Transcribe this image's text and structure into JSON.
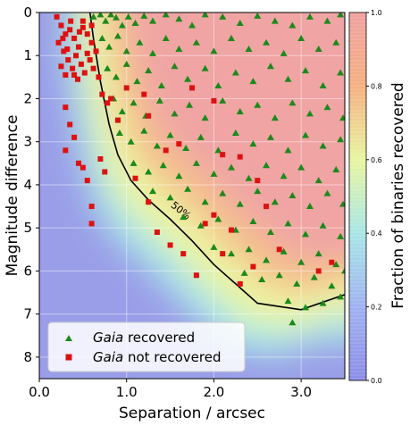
{
  "chart_data": {
    "type": "scatter",
    "xlabel": "Separation / arcsec",
    "ylabel": "Magnitude difference",
    "xlim": [
      0.0,
      3.5
    ],
    "ylim": [
      8.5,
      0.0
    ],
    "y_inverted": true,
    "grid": true,
    "legend_placement": "bottom-left",
    "xticks": [
      {
        "value": 0.0,
        "label": "0.0"
      },
      {
        "value": 1.0,
        "label": "1.0"
      },
      {
        "value": 2.0,
        "label": "2.0"
      },
      {
        "value": 3.0,
        "label": "3.0"
      }
    ],
    "yticks": [
      {
        "value": 0,
        "label": "0"
      },
      {
        "value": 1,
        "label": "1"
      },
      {
        "value": 2,
        "label": "2"
      },
      {
        "value": 3,
        "label": "3"
      },
      {
        "value": 4,
        "label": "4"
      },
      {
        "value": 5,
        "label": "5"
      },
      {
        "value": 6,
        "label": "6"
      },
      {
        "value": 7,
        "label": "7"
      },
      {
        "value": 8,
        "label": "8"
      }
    ],
    "background_map": {
      "quantity": "Fraction of binaries recovered",
      "range": [
        0.0,
        1.0
      ]
    },
    "colorbar": {
      "label": "Fraction of binaries recovered",
      "ticks": [
        {
          "value": 0.0,
          "label": "0.0"
        },
        {
          "value": 0.2,
          "label": "0.2"
        },
        {
          "value": 0.4,
          "label": "0.4"
        },
        {
          "value": 0.6,
          "label": "0.6"
        },
        {
          "value": 0.8,
          "label": "0.8"
        },
        {
          "value": 1.0,
          "label": "1.0"
        }
      ],
      "colors": [
        "#8c8ce6",
        "#9fb2f0",
        "#a8e6e6",
        "#e8f5a0",
        "#f5b080",
        "#f0a0a0"
      ]
    },
    "contour_50": {
      "label": "50%",
      "x": [
        0.58,
        0.62,
        0.66,
        0.7,
        0.75,
        0.8,
        0.9,
        1.05,
        1.25,
        1.5,
        1.75,
        2.0,
        2.25,
        2.5,
        3.0,
        3.5
      ],
      "y": [
        0.0,
        0.6,
        1.1,
        1.6,
        2.1,
        2.6,
        3.3,
        3.9,
        4.35,
        4.8,
        5.3,
        5.85,
        6.3,
        6.75,
        6.9,
        6.55
      ]
    },
    "series": [
      {
        "name": "Gaia recovered",
        "italic_part": "Gaia",
        "marker": "triangle",
        "color": "#1a8a1a",
        "points": [
          [
            0.62,
            0.1
          ],
          [
            0.7,
            0.05
          ],
          [
            0.76,
            0.2
          ],
          [
            0.82,
            0.05
          ],
          [
            0.88,
            0.12
          ],
          [
            0.95,
            0.3
          ],
          [
            1.02,
            0.1
          ],
          [
            1.1,
            0.25
          ],
          [
            1.2,
            0.08
          ],
          [
            1.3,
            0.2
          ],
          [
            1.45,
            0.05
          ],
          [
            1.6,
            0.15
          ],
          [
            1.75,
            0.3
          ],
          [
            1.9,
            0.05
          ],
          [
            2.1,
            0.1
          ],
          [
            2.3,
            0.25
          ],
          [
            2.5,
            0.08
          ],
          [
            2.7,
            0.2
          ],
          [
            2.9,
            0.3
          ],
          [
            3.1,
            0.1
          ],
          [
            3.3,
            0.2
          ],
          [
            3.45,
            0.05
          ],
          [
            0.72,
            0.6
          ],
          [
            0.8,
            0.8
          ],
          [
            0.9,
            0.55
          ],
          [
            1.0,
            0.9
          ],
          [
            1.15,
            0.7
          ],
          [
            1.3,
            0.95
          ],
          [
            1.45,
            0.6
          ],
          [
            1.6,
            0.85
          ],
          [
            1.8,
            0.7
          ],
          [
            2.0,
            0.9
          ],
          [
            2.2,
            0.6
          ],
          [
            2.4,
            0.85
          ],
          [
            2.6,
            0.7
          ],
          [
            2.8,
            0.95
          ],
          [
            3.0,
            0.6
          ],
          [
            3.2,
            0.85
          ],
          [
            3.4,
            0.7
          ],
          [
            0.78,
            1.3
          ],
          [
            0.88,
            1.5
          ],
          [
            1.0,
            1.2
          ],
          [
            1.12,
            1.6
          ],
          [
            1.25,
            1.35
          ],
          [
            1.4,
            1.7
          ],
          [
            1.55,
            1.25
          ],
          [
            1.7,
            1.55
          ],
          [
            1.9,
            1.3
          ],
          [
            2.05,
            1.7
          ],
          [
            2.25,
            1.4
          ],
          [
            2.45,
            1.6
          ],
          [
            2.65,
            1.25
          ],
          [
            2.85,
            1.55
          ],
          [
            3.05,
            1.35
          ],
          [
            3.25,
            1.7
          ],
          [
            3.45,
            1.4
          ],
          [
            0.85,
            2.0
          ],
          [
            0.95,
            2.3
          ],
          [
            1.08,
            2.1
          ],
          [
            1.22,
            2.4
          ],
          [
            1.38,
            2.05
          ],
          [
            1.55,
            2.35
          ],
          [
            1.72,
            2.15
          ],
          [
            1.9,
            2.45
          ],
          [
            2.1,
            2.05
          ],
          [
            2.3,
            2.3
          ],
          [
            2.5,
            2.15
          ],
          [
            2.7,
            2.45
          ],
          [
            2.9,
            2.1
          ],
          [
            3.1,
            2.35
          ],
          [
            3.3,
            2.2
          ],
          [
            3.48,
            2.45
          ],
          [
            0.92,
            2.8
          ],
          [
            1.05,
            3.0
          ],
          [
            1.2,
            2.75
          ],
          [
            1.35,
            3.1
          ],
          [
            1.5,
            2.85
          ],
          [
            1.68,
            3.15
          ],
          [
            1.85,
            2.9
          ],
          [
            2.05,
            3.2
          ],
          [
            2.25,
            2.8
          ],
          [
            2.45,
            3.05
          ],
          [
            2.65,
            2.9
          ],
          [
            2.85,
            3.2
          ],
          [
            3.05,
            2.85
          ],
          [
            3.25,
            3.1
          ],
          [
            3.45,
            2.95
          ],
          [
            1.08,
            3.5
          ],
          [
            1.25,
            3.7
          ],
          [
            1.42,
            3.55
          ],
          [
            1.6,
            3.8
          ],
          [
            1.8,
            3.5
          ],
          [
            2.0,
            3.75
          ],
          [
            2.2,
            3.6
          ],
          [
            2.4,
            3.85
          ],
          [
            2.6,
            3.55
          ],
          [
            2.8,
            3.8
          ],
          [
            3.0,
            3.6
          ],
          [
            3.2,
            3.9
          ],
          [
            3.4,
            3.65
          ],
          [
            1.3,
            4.15
          ],
          [
            1.5,
            4.3
          ],
          [
            1.7,
            4.1
          ],
          [
            1.9,
            4.4
          ],
          [
            2.1,
            4.2
          ],
          [
            2.3,
            4.45
          ],
          [
            2.5,
            4.15
          ],
          [
            2.7,
            4.4
          ],
          [
            2.9,
            4.25
          ],
          [
            3.1,
            4.5
          ],
          [
            3.3,
            4.2
          ],
          [
            3.48,
            4.45
          ],
          [
            1.65,
            4.75
          ],
          [
            1.85,
            4.95
          ],
          [
            2.05,
            4.8
          ],
          [
            2.25,
            5.05
          ],
          [
            2.45,
            4.85
          ],
          [
            2.65,
            5.1
          ],
          [
            2.85,
            4.9
          ],
          [
            3.05,
            5.15
          ],
          [
            3.25,
            4.95
          ],
          [
            3.45,
            5.2
          ],
          [
            2.0,
            5.45
          ],
          [
            2.2,
            5.6
          ],
          [
            2.4,
            5.5
          ],
          [
            2.6,
            5.75
          ],
          [
            2.8,
            5.55
          ],
          [
            3.0,
            5.8
          ],
          [
            3.2,
            5.6
          ],
          [
            3.4,
            5.85
          ],
          [
            2.35,
            6.05
          ],
          [
            2.55,
            6.2
          ],
          [
            2.75,
            6.1
          ],
          [
            2.95,
            6.3
          ],
          [
            3.15,
            6.15
          ],
          [
            3.35,
            6.35
          ],
          [
            3.5,
            6.0
          ],
          [
            2.85,
            6.7
          ],
          [
            3.05,
            6.85
          ],
          [
            3.25,
            6.75
          ],
          [
            3.45,
            6.6
          ],
          [
            2.9,
            7.2
          ]
        ]
      },
      {
        "name": "Gaia not recovered",
        "italic_part": "Gaia",
        "marker": "square",
        "color": "#dd1111",
        "points": [
          [
            0.2,
            0.1
          ],
          [
            0.25,
            0.3
          ],
          [
            0.3,
            0.5
          ],
          [
            0.22,
            0.7
          ],
          [
            0.28,
            0.9
          ],
          [
            0.35,
            0.4
          ],
          [
            0.4,
            0.6
          ],
          [
            0.45,
            0.8
          ],
          [
            0.5,
            0.2
          ],
          [
            0.55,
            0.5
          ],
          [
            0.6,
            0.7
          ],
          [
            0.65,
            0.9
          ],
          [
            0.33,
            1.1
          ],
          [
            0.38,
            1.3
          ],
          [
            0.42,
            1.0
          ],
          [
            0.48,
            1.2
          ],
          [
            0.52,
            1.4
          ],
          [
            0.58,
            1.1
          ],
          [
            0.62,
            1.3
          ],
          [
            0.25,
            1.25
          ],
          [
            0.3,
            1.45
          ],
          [
            0.44,
            1.55
          ],
          [
            0.5,
            0.35
          ],
          [
            0.55,
            0.95
          ],
          [
            0.36,
            0.2
          ],
          [
            0.27,
            0.6
          ],
          [
            0.46,
            0.45
          ],
          [
            0.32,
            0.85
          ],
          [
            0.4,
            1.45
          ],
          [
            0.6,
            0.3
          ],
          [
            0.68,
            1.5
          ],
          [
            0.72,
            1.9
          ],
          [
            0.78,
            2.1
          ],
          [
            0.82,
            2.0
          ],
          [
            0.3,
            2.2
          ],
          [
            0.35,
            2.6
          ],
          [
            0.4,
            2.9
          ],
          [
            0.3,
            3.2
          ],
          [
            0.45,
            3.5
          ],
          [
            0.5,
            3.6
          ],
          [
            0.6,
            4.5
          ],
          [
            0.6,
            4.9
          ],
          [
            0.55,
            3.9
          ],
          [
            0.7,
            3.4
          ],
          [
            0.75,
            3.7
          ],
          [
            0.9,
            2.5
          ],
          [
            1.1,
            3.85
          ],
          [
            1.25,
            4.4
          ],
          [
            1.35,
            5.1
          ],
          [
            1.5,
            5.4
          ],
          [
            1.65,
            5.6
          ],
          [
            1.8,
            6.1
          ],
          [
            1.9,
            4.9
          ],
          [
            2.0,
            4.7
          ],
          [
            2.1,
            5.6
          ],
          [
            2.2,
            5.05
          ],
          [
            2.3,
            6.3
          ],
          [
            2.45,
            5.9
          ],
          [
            2.6,
            4.5
          ],
          [
            2.75,
            5.5
          ],
          [
            3.2,
            6.0
          ],
          [
            3.35,
            5.8
          ],
          [
            1.2,
            1.9
          ],
          [
            1.25,
            2.4
          ],
          [
            1.45,
            3.2
          ],
          [
            1.6,
            3.05
          ],
          [
            1.75,
            1.75
          ],
          [
            2.0,
            2.05
          ],
          [
            2.3,
            3.35
          ],
          [
            2.5,
            3.9
          ],
          [
            2.1,
            3.3
          ],
          [
            1.0,
            1.75
          ]
        ]
      }
    ]
  }
}
